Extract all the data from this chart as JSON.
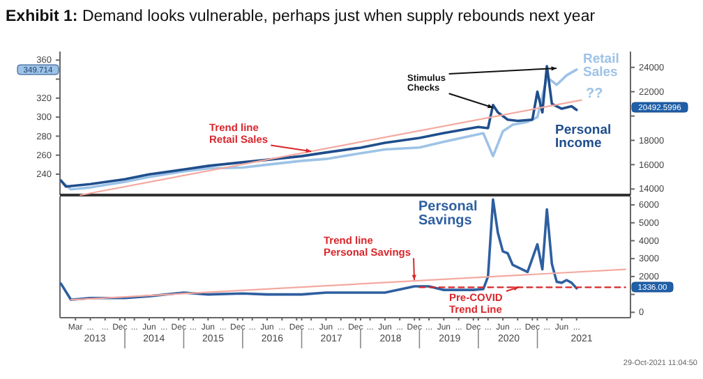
{
  "chart_data": [
    {
      "type": "line",
      "title": "Exhibit 1:  Demand looks vulnerable, perhaps just when supply rebounds next year",
      "xlim": [
        "2012-11-25",
        "2022-08-01"
      ],
      "tick_labels": "y",
      "ylim": [
        218,
        369
      ],
      "yticks": [
        240,
        260,
        280,
        300,
        320,
        {
          "value": 340,
          "label": null
        },
        360
      ],
      "y2lim": [
        13500,
        25300
      ],
      "y2ticks": [
        14000,
        16000,
        18000,
        {
          "value": 20000,
          "label": null
        },
        22000,
        24000
      ],
      "series": [
        {
          "name": "Retail Sales",
          "color": "#9dc3e6",
          "x": [
            "2012-12",
            "2013-02",
            "2013-06",
            "2014-01",
            "2014-06",
            "2015-01",
            "2015-06",
            "2016-01",
            "2016-06",
            "2017-01",
            "2017-06",
            "2018-01",
            "2018-06",
            "2019-01",
            "2019-06",
            "2020-01",
            "2020-02",
            "2020-04",
            "2020-06",
            "2020-08",
            "2020-11",
            "2021-01",
            "2021-03",
            "2021-05",
            "2021-07",
            "2021-09"
          ],
          "values": [
            233,
            224,
            226,
            232,
            237,
            243,
            246,
            247,
            250,
            254,
            256,
            262,
            266,
            268,
            274,
            282,
            283,
            259,
            285,
            292,
            295,
            300,
            342,
            334,
            344,
            350
          ]
        },
        {
          "name": "Personal Income",
          "color": "#1f4e8c",
          "axis": "y2",
          "x": [
            "2012-12",
            "2013-01",
            "2013-06",
            "2014-01",
            "2014-06",
            "2015-01",
            "2015-06",
            "2016-01",
            "2016-06",
            "2017-01",
            "2017-06",
            "2018-01",
            "2018-06",
            "2019-01",
            "2019-06",
            "2020-01",
            "2020-03",
            "2020-04",
            "2020-05",
            "2020-07",
            "2020-09",
            "2020-12",
            "2021-01",
            "2021-02",
            "2021-03",
            "2021-04",
            "2021-06",
            "2021-08",
            "2021-09"
          ],
          "values": [
            14700,
            14200,
            14400,
            14800,
            15200,
            15600,
            15900,
            16200,
            16400,
            16700,
            17000,
            17400,
            17800,
            18200,
            18600,
            19100,
            19000,
            20900,
            20300,
            19700,
            19600,
            19700,
            22000,
            20300,
            24100,
            21000,
            20600,
            20800,
            20500
          ]
        },
        {
          "color": "#f4a9a0",
          "x": [
            "2013-04",
            "2021-10"
          ],
          "values": [
            218,
            318
          ]
        }
      ],
      "annotations": [
        {
          "text": "Trend line Retail Sales",
          "x": "2017-03",
          "y": 264
        },
        {
          "text": "Stimulus Checks",
          "x": "2020-04",
          "y": 310
        },
        "??",
        "349.714",
        "20492.5996"
      ]
    },
    {
      "type": "line",
      "xlim": [
        "2012-11-25",
        "2022-08-01"
      ],
      "xticks": [
        {
          "value": "2013-03",
          "label": "Mar"
        },
        {
          "value": "2013-06",
          "label": "..."
        },
        {
          "value": "2013-09",
          "label": "..."
        },
        {
          "value": "2013-12",
          "label": "Dec"
        },
        {
          "value": "2014-03",
          "label": "..."
        },
        {
          "value": "2014-06",
          "label": "Jun"
        },
        {
          "value": "2014-09",
          "label": "..."
        },
        {
          "value": "2014-12",
          "label": "Dec"
        },
        {
          "value": "2015-03",
          "label": "..."
        },
        {
          "value": "2015-06",
          "label": "Jun"
        },
        {
          "value": "2015-09",
          "label": "..."
        },
        {
          "value": "2015-12",
          "label": "Dec"
        },
        {
          "value": "2016-03",
          "label": "..."
        },
        {
          "value": "2016-06",
          "label": "Jun"
        },
        {
          "value": "2016-09",
          "label": "..."
        },
        {
          "value": "2016-12",
          "label": "Dec"
        },
        {
          "value": "2017-03",
          "label": "..."
        },
        {
          "value": "2017-06",
          "label": "Jun"
        },
        {
          "value": "2017-09",
          "label": "..."
        },
        {
          "value": "2017-12",
          "label": "Dec"
        },
        {
          "value": "2018-03",
          "label": "..."
        },
        {
          "value": "2018-06",
          "label": "Jun"
        },
        {
          "value": "2018-09",
          "label": "..."
        },
        {
          "value": "2018-12",
          "label": "Dec"
        },
        {
          "value": "2019-03",
          "label": "..."
        },
        {
          "value": "2019-06",
          "label": "Jun"
        },
        {
          "value": "2019-09",
          "label": "..."
        },
        {
          "value": "2019-12",
          "label": "Dec"
        },
        {
          "value": "2020-03",
          "label": "..."
        },
        {
          "value": "2020-06",
          "label": "Jun"
        },
        {
          "value": "2020-09",
          "label": "..."
        },
        {
          "value": "2020-12",
          "label": "Dec"
        },
        {
          "value": "2021-03",
          "label": "..."
        },
        {
          "value": "2021-06",
          "label": "Jun"
        },
        {
          "value": "2021-09",
          "label": "..."
        },
        {
          "value": "2014-01",
          "label": null
        },
        {
          "value": "2015-01",
          "label": null
        },
        {
          "value": "2016-01",
          "label": null
        },
        {
          "value": "2017-01",
          "label": null
        },
        {
          "value": "2018-01",
          "label": null
        },
        {
          "value": "2019-01",
          "label": null
        },
        {
          "value": "2020-01",
          "label": null
        },
        {
          "value": "2021-01",
          "label": null
        }
      ],
      "y2lim": [
        -300,
        6470
      ],
      "y2ticks": [
        0,
        {
          "value": 1000,
          "label": null
        },
        2000,
        3000,
        4000,
        5000,
        6000
      ],
      "series": [
        {
          "name": "Personal Savings",
          "color": "#2e5fa0",
          "axis": "y2",
          "x": [
            "2012-12",
            "2013-02",
            "2013-06",
            "2014-01",
            "2014-06",
            "2015-01",
            "2015-06",
            "2016-01",
            "2016-06",
            "2017-01",
            "2017-06",
            "2018-01",
            "2018-06",
            "2018-12",
            "2019-03",
            "2019-06",
            "2019-12",
            "2020-02",
            "2020-03",
            "2020-04",
            "2020-05",
            "2020-06",
            "2020-07",
            "2020-08",
            "2020-11",
            "2021-01",
            "2021-02",
            "2021-03",
            "2021-04",
            "2021-05",
            "2021-06",
            "2021-07",
            "2021-08",
            "2021-09"
          ],
          "values": [
            1600,
            700,
            800,
            800,
            900,
            1100,
            1000,
            1050,
            1000,
            1000,
            1100,
            1100,
            1100,
            1450,
            1450,
            1250,
            1250,
            1300,
            2000,
            6300,
            4450,
            3400,
            3300,
            2650,
            2250,
            3800,
            2400,
            5750,
            2700,
            1700,
            1650,
            1800,
            1650,
            1340
          ]
        },
        {
          "color": "#f4a9a0",
          "axis": "y2",
          "x": [
            "2013-02",
            "2022-07"
          ],
          "values": [
            700,
            2400
          ]
        },
        {
          "color": "#d62728",
          "axis": "y2",
          "line_style": "dashed",
          "x": [
            "2019-01",
            "2022-07"
          ],
          "values": [
            1400,
            1400
          ]
        }
      ],
      "annotations": [
        "Trend line Personal Savings",
        "Pre-COVID Trend Line",
        "29-Oct-2021 11:04:50",
        "1336.00",
        "2013",
        "2014",
        "2015",
        "2016",
        "2017",
        "2018",
        "2019",
        "2020",
        "2021"
      ]
    }
  ]
}
